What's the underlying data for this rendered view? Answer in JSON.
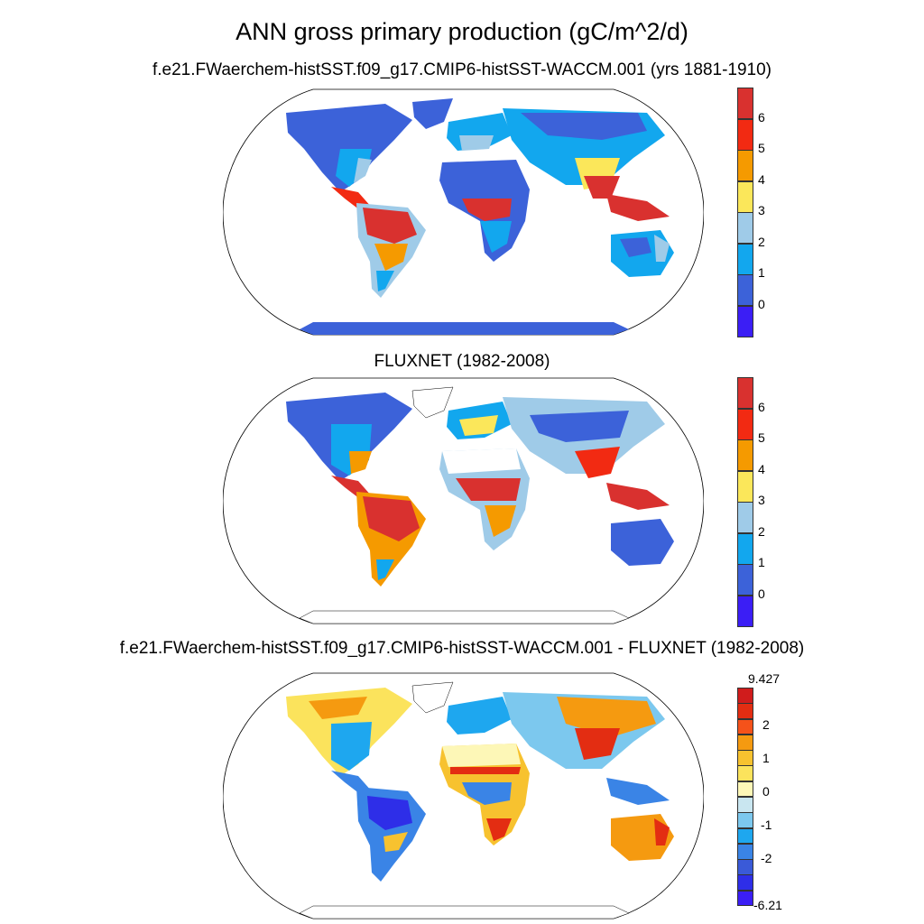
{
  "title": "ANN gross primary production (gC/m^2/d)",
  "panels": [
    {
      "subtitle": "f.e21.FWaerchem-histSST.f09_g17.CMIP6-histSST-WACCM.001 (yrs 1881-1910)",
      "colorbar": {
        "labels": [
          "6",
          "5",
          "4",
          "3",
          "2",
          "1",
          "0"
        ],
        "colors": [
          "#d9312f",
          "#f22a12",
          "#f59a00",
          "#fbe75a",
          "#9fcbe8",
          "#12a7ee",
          "#3c62d9",
          "#3b1ef5"
        ]
      }
    },
    {
      "subtitle": "FLUXNET (1982-2008)",
      "colorbar": {
        "labels": [
          "6",
          "5",
          "4",
          "3",
          "2",
          "1",
          "0"
        ],
        "colors": [
          "#d9312f",
          "#f22a12",
          "#f59a00",
          "#fbe75a",
          "#9fcbe8",
          "#12a7ee",
          "#3c62d9",
          "#3b1ef5"
        ]
      }
    },
    {
      "subtitle": "f.e21.FWaerchem-histSST.f09_g17.CMIP6-histSST-WACCM.001 - FLUXNET (1982-2008)",
      "colorbar": {
        "labels": [
          "9.427",
          "2",
          "1",
          "0",
          "-1",
          "-2",
          "-6.21"
        ],
        "colors": [
          "#d01c1c",
          "#e32d12",
          "#f5521a",
          "#f59a10",
          "#f7c22f",
          "#fbe35c",
          "#fdf7b7",
          "#c9e6f0",
          "#7cc8ee",
          "#1ea7ef",
          "#3a84e6",
          "#3a5ad8",
          "#2e2ee8",
          "#3b1ef5"
        ]
      }
    }
  ]
}
